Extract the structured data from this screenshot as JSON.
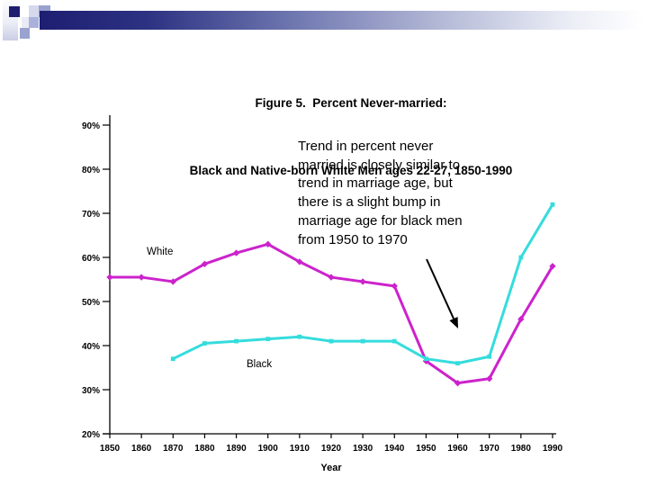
{
  "slide": {
    "title_line1": "Figure 5.  Percent Never-married:",
    "title_line2": "Black and Native-born White Men ages 22-27, 1850-1990"
  },
  "annotation": {
    "text": "Trend in percent never\nmarried is closely similar to\ntrend in marriage age, but\nthere is a slight bump in\nmarriage age for black men\nfrom 1950 to 1970"
  },
  "labels": {
    "white_series": "White",
    "black_series": "Black",
    "xlabel": "Year"
  },
  "colors": {
    "white_series": "#cc22cc",
    "black_series": "#35dcdc",
    "axis": "#000000",
    "accent_navy": "#1e1e6e"
  },
  "chart_data": {
    "type": "line",
    "title": "Figure 5. Percent Never-married: Black and Native-born White Men ages 22-27, 1850-1990",
    "xlabel": "Year",
    "ylabel": "",
    "x": [
      1850,
      1860,
      1870,
      1880,
      1890,
      1900,
      1910,
      1920,
      1930,
      1940,
      1950,
      1960,
      1970,
      1980,
      1990
    ],
    "xtick_labels": [
      "1850",
      "1860",
      "1870",
      "1880",
      "1890",
      "1900",
      "1910",
      "1920",
      "1930",
      "1940",
      "1950",
      "1960",
      "1970",
      "1980",
      "1990"
    ],
    "ylim": [
      20,
      90
    ],
    "yticks": [
      20,
      30,
      40,
      50,
      60,
      70,
      80,
      90
    ],
    "ytick_labels": [
      "20%",
      "30%",
      "40%",
      "50%",
      "60%",
      "70%",
      "80%",
      "90%"
    ],
    "grid": false,
    "legend_position": "inline-labels",
    "series": [
      {
        "name": "White",
        "color": "#cc22cc",
        "values": [
          55.5,
          55.5,
          54.5,
          58.5,
          61,
          63,
          59,
          55.5,
          54.5,
          53.5,
          36.5,
          31.5,
          32.5,
          46,
          58
        ]
      },
      {
        "name": "Black",
        "color": "#35dcdc",
        "values": [
          null,
          null,
          37,
          40.5,
          41,
          41.5,
          42,
          41,
          41,
          41,
          37,
          36,
          37.5,
          60,
          72
        ]
      }
    ]
  }
}
